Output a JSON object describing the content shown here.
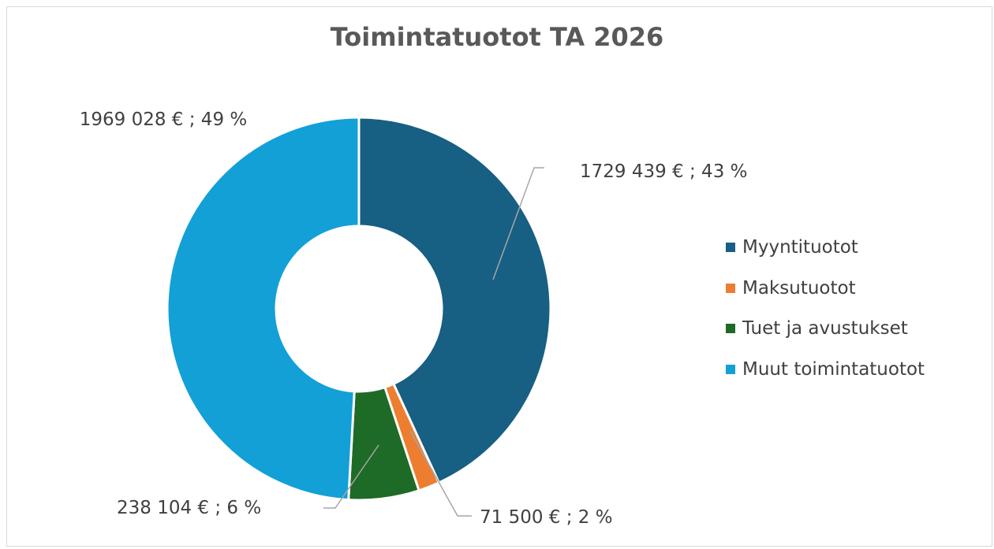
{
  "chart_data": {
    "type": "donut",
    "title": "Toimintatuotot TA 2026",
    "categories": [
      "Myyntituotot",
      "Maksutuotot",
      "Tuet ja avustukset",
      "Muut toimintatuotot"
    ],
    "values": [
      1729439,
      71500,
      238104,
      1969028
    ],
    "value_labels": [
      "1729 439 € ; 43 %",
      "71 500 € ; 2 %",
      "238 104 € ; 6 %",
      "1969 028 € ; 49 %"
    ],
    "colors": [
      "#175f83",
      "#ed7d31",
      "#1d6b26",
      "#12a0d7"
    ],
    "legend": "right"
  }
}
